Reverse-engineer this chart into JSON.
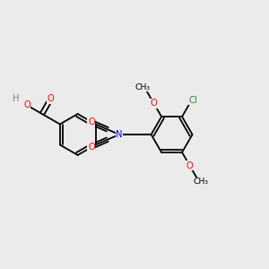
{
  "background_color": "#ebebeb",
  "bond_color": "#000000",
  "atom_colors": {
    "O": "#ff0000",
    "N": "#0000ff",
    "Cl": "#228b22",
    "C": "#000000",
    "H": "#808080"
  },
  "lw": 1.3,
  "fs": 7.2,
  "xlim": [
    0.0,
    1.0
  ],
  "ylim": [
    0.0,
    1.0
  ]
}
